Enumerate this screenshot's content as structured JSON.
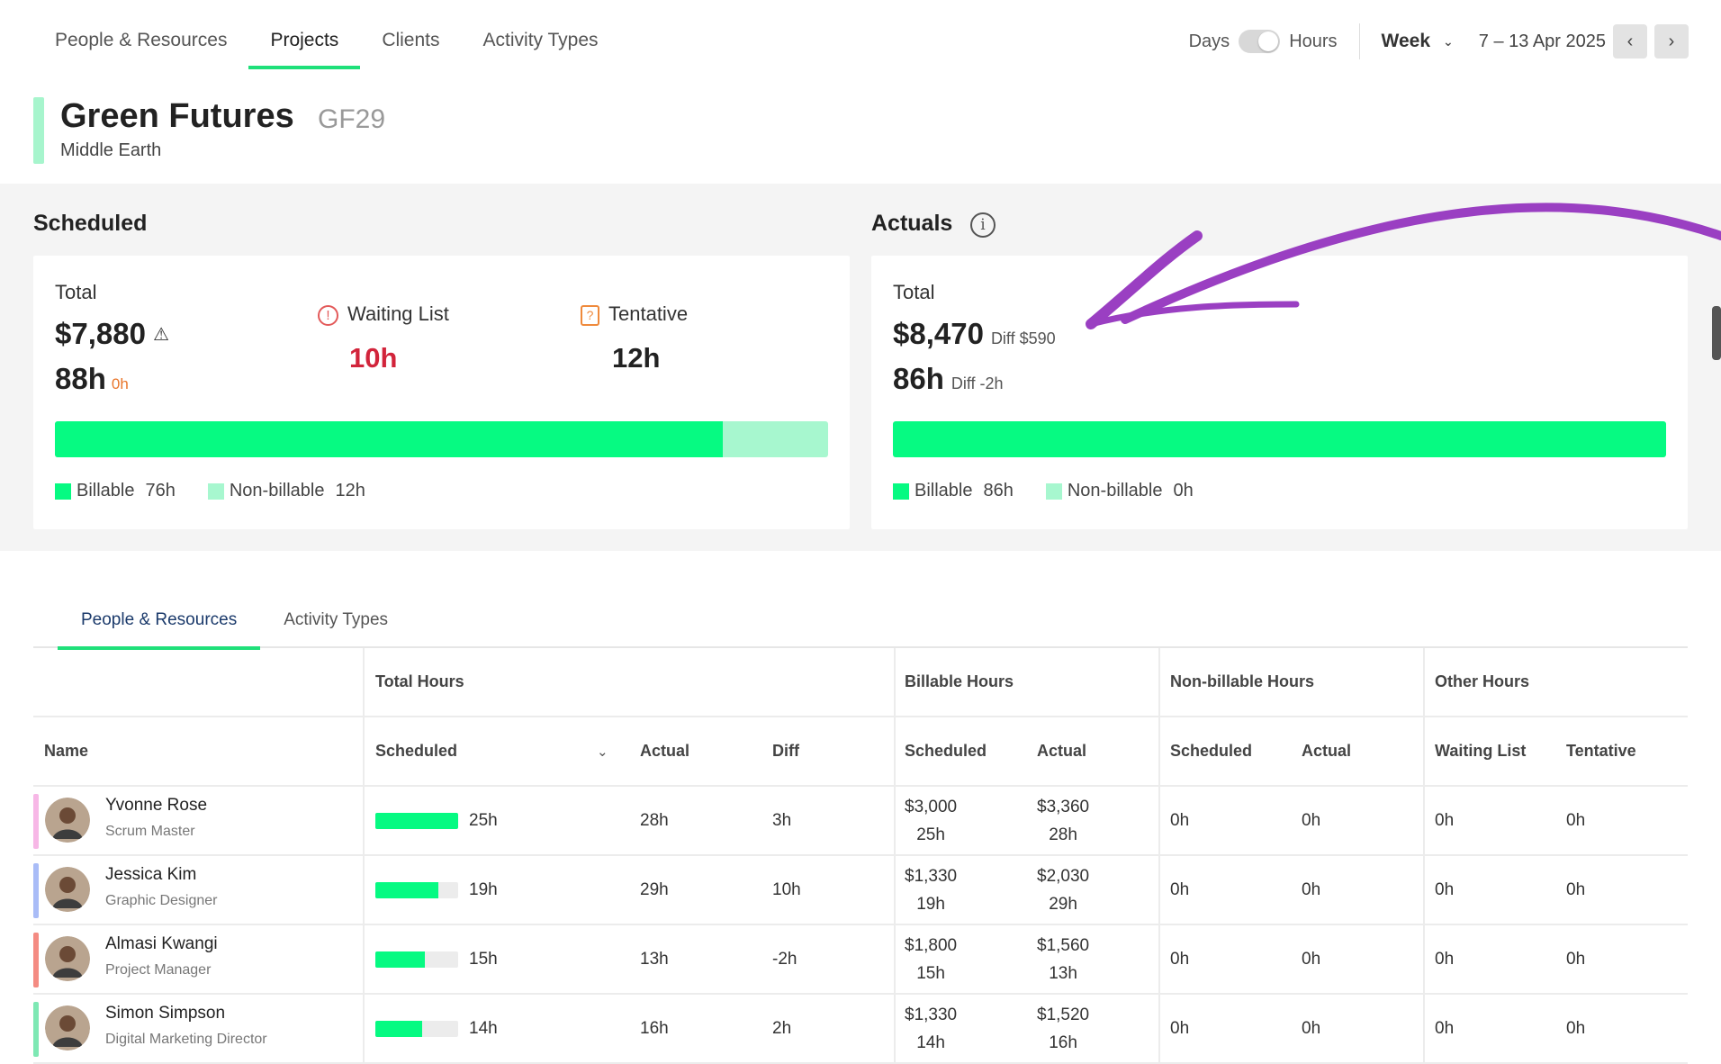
{
  "nav": {
    "tabs": [
      {
        "label": "People & Resources"
      },
      {
        "label": "Projects"
      },
      {
        "label": "Clients"
      },
      {
        "label": "Activity Types"
      }
    ],
    "days_label": "Days",
    "hours_label": "Hours",
    "period": "Week",
    "date_range": "7 – 13 Apr 2025"
  },
  "project": {
    "name": "Green Futures",
    "code": "GF29",
    "client": "Middle Earth",
    "color": "#a7f5cd"
  },
  "scheduled": {
    "title": "Scheduled",
    "total_label": "Total",
    "total_amount": "$7,880",
    "total_hours": "88h",
    "extra_hours": "0h",
    "waiting_label": "Waiting List",
    "waiting_value": "10h",
    "tentative_label": "Tentative",
    "tentative_value": "12h",
    "billable_label": "Billable",
    "billable_value": "76h",
    "nonbillable_label": "Non-billable",
    "nonbillable_value": "12h",
    "billable_fraction": 0.864
  },
  "actuals": {
    "title": "Actuals",
    "total_label": "Total",
    "total_amount": "$8,470",
    "amount_diff": "Diff $590",
    "total_hours": "86h",
    "hours_diff": "Diff -2h",
    "billable_label": "Billable",
    "billable_value": "86h",
    "nonbillable_label": "Non-billable",
    "nonbillable_value": "0h",
    "billable_fraction": 1.0
  },
  "subtabs": [
    {
      "label": "People & Resources"
    },
    {
      "label": "Activity Types"
    }
  ],
  "table": {
    "groups": {
      "total": "Total Hours",
      "billable": "Billable Hours",
      "nonbillable": "Non-billable Hours",
      "other": "Other Hours"
    },
    "columns": {
      "name": "Name",
      "scheduled": "Scheduled",
      "actual": "Actual",
      "diff": "Diff",
      "b_scheduled": "Scheduled",
      "b_actual": "Actual",
      "nb_scheduled": "Scheduled",
      "nb_actual": "Actual",
      "waiting": "Waiting List",
      "tentative": "Tentative"
    },
    "rows": [
      {
        "name": "Yvonne Rose",
        "role": "Scrum Master",
        "color": "#f7b7e6",
        "sched": "25h",
        "sched_fraction": 1.0,
        "actual": "28h",
        "diff": "3h",
        "b_sched_amt": "$3,000",
        "b_sched_h": "25h",
        "b_act_amt": "$3,360",
        "b_act_h": "28h",
        "nb_sched": "0h",
        "nb_act": "0h",
        "waiting": "0h",
        "tentative": "0h"
      },
      {
        "name": "Jessica Kim",
        "role": "Graphic Designer",
        "color": "#a9bcf7",
        "sched": "19h",
        "sched_fraction": 0.76,
        "actual": "29h",
        "diff": "10h",
        "b_sched_amt": "$1,330",
        "b_sched_h": "19h",
        "b_act_amt": "$2,030",
        "b_act_h": "29h",
        "nb_sched": "0h",
        "nb_act": "0h",
        "waiting": "0h",
        "tentative": "0h"
      },
      {
        "name": "Almasi Kwangi",
        "role": "Project Manager",
        "color": "#f48b82",
        "sched": "15h",
        "sched_fraction": 0.6,
        "actual": "13h",
        "diff": "-2h",
        "b_sched_amt": "$1,800",
        "b_sched_h": "15h",
        "b_act_amt": "$1,560",
        "b_act_h": "13h",
        "nb_sched": "0h",
        "nb_act": "0h",
        "waiting": "0h",
        "tentative": "0h"
      },
      {
        "name": "Simon Simpson",
        "role": "Digital Marketing Director",
        "color": "#7ee8b4",
        "sched": "14h",
        "sched_fraction": 0.56,
        "actual": "16h",
        "diff": "2h",
        "b_sched_amt": "$1,330",
        "b_sched_h": "14h",
        "b_act_amt": "$1,520",
        "b_act_h": "16h",
        "nb_sched": "0h",
        "nb_act": "0h",
        "waiting": "0h",
        "tentative": "0h"
      }
    ]
  },
  "colors": {
    "accent": "#1fe07a",
    "billable": "#06fa82",
    "nonbillable": "#a7f7cf",
    "arrow": "#9a3fc2",
    "waiting": "#d2243b",
    "overtime": "#e9762b"
  }
}
